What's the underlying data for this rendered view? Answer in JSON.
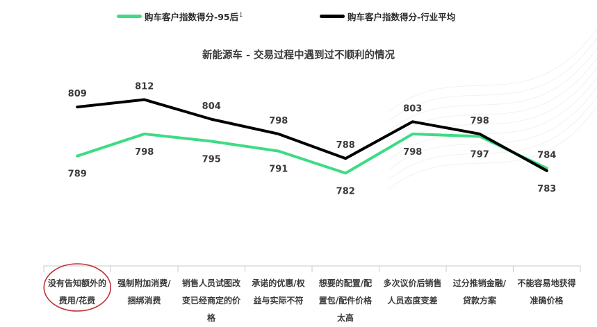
{
  "chart_data": {
    "type": "line",
    "title": "新能源车 - 交易过程中遇到过不顺利的情况",
    "categories": [
      [
        "没有告知额外的",
        "费用/花费"
      ],
      [
        "强制附加消费/",
        "捆绑消费"
      ],
      [
        "销售人员试图改",
        "变已经商定的价",
        "格"
      ],
      [
        "承诺的优惠/权",
        "益与实际不符"
      ],
      [
        "想要的配置/配",
        "置包/配件价格",
        "太高"
      ],
      [
        "多次议价后销售",
        "人员态度变差"
      ],
      [
        "过分推销金融/",
        "贷款方案"
      ],
      [
        "不能容易地获得",
        "准确价格"
      ]
    ],
    "series": [
      {
        "name": "购车客户指数得分-95后",
        "superscript": "1",
        "color": "#3ddc84",
        "values": [
          789,
          798,
          795,
          791,
          782,
          798,
          797,
          784
        ]
      },
      {
        "name": "购车客户指数得分-行业平均",
        "color": "#000000",
        "values": [
          809,
          812,
          804,
          798,
          788,
          803,
          798,
          783
        ]
      }
    ],
    "ylim": [
      745,
      830
    ],
    "legend": "top-center",
    "grid": false,
    "highlight_category_index": 0,
    "highlight_color": "#c0303a"
  }
}
